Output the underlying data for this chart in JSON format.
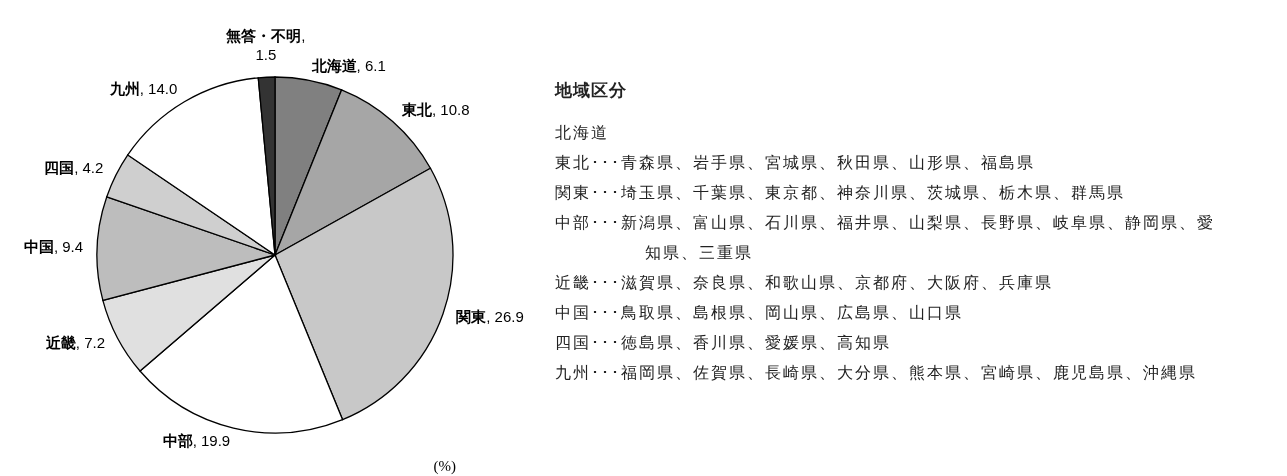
{
  "chart_data": {
    "type": "pie",
    "categories": [
      "北海道",
      "東北",
      "関東",
      "中部",
      "近畿",
      "中国",
      "四国",
      "九州",
      "無答・不明"
    ],
    "values": [
      6.1,
      10.8,
      26.9,
      19.9,
      7.2,
      9.4,
      4.2,
      14.0,
      1.5
    ],
    "value_labels": [
      ", 6.1",
      ", 10.8",
      ", 26.9",
      ", 19.9",
      ", 7.2",
      ", 9.4",
      ", 4.2",
      ", 14.0",
      ",\n1.5"
    ],
    "colors": [
      "#808080",
      "#a6a6a6",
      "#c8c8c8",
      "#ffffff",
      "#e0e0e0",
      "#bdbdbd",
      "#cfcfcf",
      "#ffffff",
      "#333333"
    ],
    "annotations": [
      "(%)",
      "地域区分",
      "北海道",
      "東北･･･青森県、岩手県、宮城県、秋田県、山形県、福島県",
      "関東･･･埼玉県、千葉県、東京都、神奈川県、茨城県、栃木県、群馬県",
      "中部･･･新潟県、富山県、石川県、福井県、山梨県、長野県、岐阜県、静岡県、愛知県、三重県",
      "近畿･･･滋賀県、奈良県、和歌山県、京都府、大阪府、兵庫県",
      "中国･･･鳥取県、島根県、岡山県、広島県、山口県",
      "四国･･･徳島県、香川県、愛媛県、高知県",
      "九州･･･福岡県、佐賀県、長崎県、大分県、熊本県、宮崎県、鹿児島県、沖縄県"
    ]
  }
}
